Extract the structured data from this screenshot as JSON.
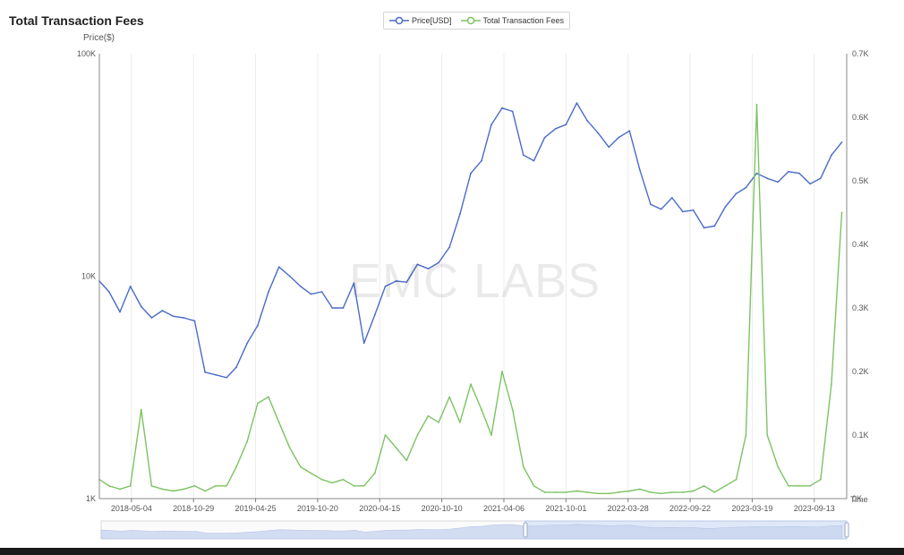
{
  "chart_data": {
    "type": "line",
    "title": "Total Transaction Fees",
    "ylabel": "Price($)",
    "ylabel_right": "",
    "scale_left": "log",
    "ylim_left": [
      1000,
      100000
    ],
    "ylim_right": [
      0,
      0.7
    ],
    "left_ticks": [
      "100K",
      "10K",
      "1K"
    ],
    "right_ticks": [
      "0.7K",
      "0.6K",
      "0.5K",
      "0.4K",
      "0.3K",
      "0.2K",
      "0.1K",
      "0K"
    ],
    "x_tick_labels": [
      "2018-05-04",
      "2018-10-29",
      "2019-04-25",
      "2019-10-20",
      "2020-04-15",
      "2020-10-10",
      "2021-04-06",
      "2021-10-01",
      "2022-03-28",
      "2022-09-22",
      "2023-03-19",
      "2023-09-13"
    ],
    "x_axis_end_label": "Time",
    "grid": "vertical",
    "legend_position": "top-center",
    "watermark": "EMC LABS",
    "series": [
      {
        "name": "Price[USD]",
        "axis": "left",
        "color": "#4a6cc9",
        "x": [
          "2018-02-01",
          "2018-03-01",
          "2018-04-01",
          "2018-05-01",
          "2018-06-01",
          "2018-07-01",
          "2018-08-01",
          "2018-09-01",
          "2018-10-01",
          "2018-11-01",
          "2018-12-01",
          "2019-01-01",
          "2019-02-01",
          "2019-03-01",
          "2019-04-01",
          "2019-05-01",
          "2019-06-01",
          "2019-07-01",
          "2019-08-01",
          "2019-09-01",
          "2019-10-01",
          "2019-11-01",
          "2019-12-01",
          "2020-01-01",
          "2020-02-01",
          "2020-03-01",
          "2020-04-01",
          "2020-05-01",
          "2020-06-01",
          "2020-07-01",
          "2020-08-01",
          "2020-09-01",
          "2020-10-01",
          "2020-11-01",
          "2020-12-01",
          "2021-01-01",
          "2021-02-01",
          "2021-03-01",
          "2021-04-01",
          "2021-05-01",
          "2021-06-01",
          "2021-07-01",
          "2021-08-01",
          "2021-09-01",
          "2021-10-01",
          "2021-11-01",
          "2021-12-01",
          "2022-01-01",
          "2022-02-01",
          "2022-03-01",
          "2022-04-01",
          "2022-05-01",
          "2022-06-01",
          "2022-07-01",
          "2022-08-01",
          "2022-09-01",
          "2022-10-01",
          "2022-11-01",
          "2022-12-01",
          "2023-01-01",
          "2023-02-01",
          "2023-03-01",
          "2023-04-01",
          "2023-05-01",
          "2023-06-01",
          "2023-07-01",
          "2023-08-01",
          "2023-09-01",
          "2023-10-01",
          "2023-11-01",
          "2023-12-01"
        ],
        "values": [
          9500,
          8500,
          6900,
          9000,
          7300,
          6500,
          7000,
          6600,
          6500,
          6300,
          3700,
          3600,
          3500,
          3900,
          5000,
          6000,
          8500,
          11000,
          10000,
          9000,
          8300,
          8500,
          7200,
          7200,
          9300,
          5000,
          6700,
          9000,
          9500,
          9400,
          11300,
          10800,
          11500,
          13500,
          19000,
          29000,
          33000,
          48000,
          57000,
          55000,
          35000,
          33000,
          42000,
          46000,
          48000,
          60000,
          50000,
          44000,
          38000,
          42000,
          45000,
          30000,
          21000,
          20000,
          22500,
          19500,
          19800,
          16500,
          16800,
          20500,
          23500,
          25000,
          29000,
          27500,
          26500,
          29500,
          29000,
          26000,
          27500,
          35000,
          40000
        ]
      },
      {
        "name": "Total Transaction Fees",
        "axis": "right",
        "color": "#7cc363",
        "x": [
          "2018-02-01",
          "2018-03-01",
          "2018-04-01",
          "2018-05-01",
          "2018-06-01",
          "2018-07-01",
          "2018-08-01",
          "2018-09-01",
          "2018-10-01",
          "2018-11-01",
          "2018-12-01",
          "2019-01-01",
          "2019-02-01",
          "2019-03-01",
          "2019-04-01",
          "2019-05-01",
          "2019-06-01",
          "2019-07-01",
          "2019-08-01",
          "2019-09-01",
          "2019-10-01",
          "2019-11-01",
          "2019-12-01",
          "2020-01-01",
          "2020-02-01",
          "2020-03-01",
          "2020-04-01",
          "2020-05-01",
          "2020-06-01",
          "2020-07-01",
          "2020-08-01",
          "2020-09-01",
          "2020-10-01",
          "2020-11-01",
          "2020-12-01",
          "2021-01-01",
          "2021-02-01",
          "2021-03-01",
          "2021-04-01",
          "2021-05-01",
          "2021-06-01",
          "2021-07-01",
          "2021-08-01",
          "2021-09-01",
          "2021-10-01",
          "2021-11-01",
          "2021-12-01",
          "2022-01-01",
          "2022-02-01",
          "2022-03-01",
          "2022-04-01",
          "2022-05-01",
          "2022-06-01",
          "2022-07-01",
          "2022-08-01",
          "2022-09-01",
          "2022-10-01",
          "2022-11-01",
          "2022-12-01",
          "2023-01-01",
          "2023-02-01",
          "2023-03-01",
          "2023-04-01",
          "2023-05-01",
          "2023-06-01",
          "2023-07-01",
          "2023-08-01",
          "2023-09-01",
          "2023-10-01",
          "2023-11-01",
          "2023-12-01"
        ],
        "values": [
          0.03,
          0.02,
          0.015,
          0.02,
          0.14,
          0.02,
          0.015,
          0.012,
          0.015,
          0.02,
          0.012,
          0.02,
          0.02,
          0.05,
          0.09,
          0.15,
          0.16,
          0.12,
          0.08,
          0.05,
          0.04,
          0.03,
          0.025,
          0.03,
          0.02,
          0.02,
          0.04,
          0.1,
          0.08,
          0.06,
          0.1,
          0.13,
          0.12,
          0.16,
          0.12,
          0.18,
          0.14,
          0.1,
          0.2,
          0.14,
          0.05,
          0.02,
          0.01,
          0.01,
          0.01,
          0.012,
          0.01,
          0.008,
          0.008,
          0.01,
          0.012,
          0.015,
          0.01,
          0.008,
          0.01,
          0.01,
          0.012,
          0.02,
          0.01,
          0.02,
          0.03,
          0.1,
          0.62,
          0.1,
          0.05,
          0.02,
          0.02,
          0.02,
          0.03,
          0.18,
          0.45
        ]
      }
    ]
  },
  "legend": {
    "items": [
      "Price[USD]",
      "Total Transaction Fees"
    ]
  }
}
